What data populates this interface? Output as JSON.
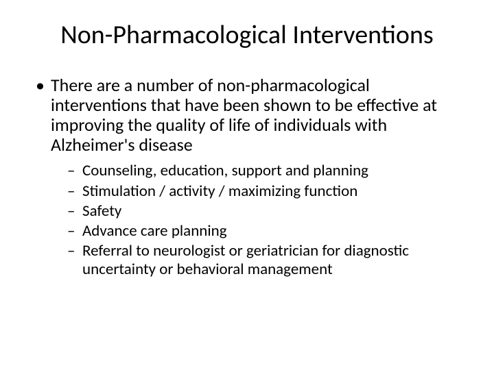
{
  "slide": {
    "title": "Non-Pharmacological Interventions",
    "title_fontsize": 38,
    "title_color": "#000000",
    "body_fontsize_l1": 26,
    "body_fontsize_l2": 23,
    "text_color": "#000000",
    "background_color": "#ffffff",
    "bullet_l1_marker": "•",
    "bullet_l2_marker": "–",
    "content": {
      "main_point": "There are a number of non-pharmacological interventions that have been shown to be effective at improving the quality of life of individuals with Alzheimer's disease",
      "sub_points": [
        "Counseling, education, support and planning",
        "Stimulation / activity / maximizing function",
        "Safety",
        "Advance care planning",
        "Referral to neurologist or geriatrician for diagnostic uncertainty or behavioral management"
      ]
    }
  }
}
